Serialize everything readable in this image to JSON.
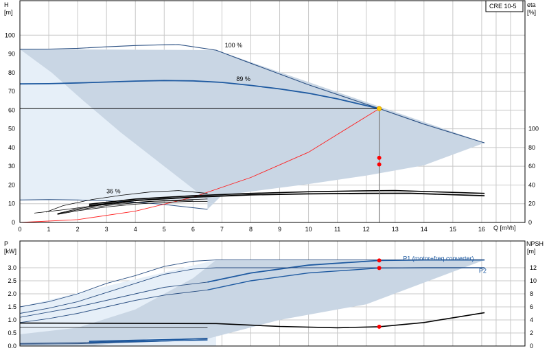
{
  "chart_data": [
    {
      "type": "line",
      "panel": "head-efficiency",
      "title": "",
      "model_label": "CRE 10-5",
      "xlabel": "Q [m³/h]",
      "ylabel_left": [
        "H",
        "[m]"
      ],
      "ylabel_right": [
        "eta",
        "[%]"
      ],
      "xlim": [
        0,
        17.5
      ],
      "ylim": [
        0,
        110
      ],
      "y2lim": [
        0,
        220
      ],
      "x_ticks": [
        0,
        1,
        2,
        3,
        4,
        5,
        6,
        7,
        8,
        9,
        10,
        11,
        12,
        13,
        14,
        15,
        16
      ],
      "y_ticks": [
        0,
        10,
        20,
        30,
        40,
        50,
        60,
        70,
        80,
        90,
        100
      ],
      "y2_ticks": [
        0,
        20,
        40,
        60,
        80,
        100
      ],
      "grid": true,
      "colors": {
        "pump": "#2a4f82",
        "duty": "#1d59a0",
        "system": "#ff2020",
        "eta": "#000000",
        "envelope": "#c9d6e4"
      },
      "operating_point": {
        "x": 12.45,
        "y": 60.8,
        "eta_points": [
          34.5,
          31.0
        ]
      },
      "annotations": [
        {
          "text": "100 %",
          "x": 7.1,
          "y": 93.5
        },
        {
          "text": "89 %",
          "x": 7.5,
          "y": 75.5
        },
        {
          "text": "36 %",
          "x": 3.0,
          "y": 15.5
        }
      ],
      "envelope": [
        [
          6.8,
          92.0
        ],
        [
          16.1,
          42.5
        ],
        [
          14.0,
          30.5
        ],
        [
          12.0,
          25.0
        ],
        [
          10.0,
          20.5
        ],
        [
          9.0,
          18.5
        ],
        [
          7.0,
          14.5
        ],
        [
          6.5,
          7.0
        ],
        [
          6.5,
          12.0
        ],
        [
          5.0,
          30.0
        ],
        [
          3.5,
          48.0
        ],
        [
          2.2,
          65.0
        ],
        [
          1.1,
          80.0
        ],
        [
          0.0,
          92.5
        ]
      ],
      "series": [
        {
          "name": "100 %",
          "x": [
            0,
            1,
            2,
            3,
            4,
            5,
            5.5,
            6.8,
            8,
            10,
            12.45,
            14,
            16.1
          ],
          "values": [
            92.5,
            92.6,
            93.0,
            93.8,
            94.5,
            94.9,
            95.0,
            92.0,
            85.0,
            73.5,
            60.8,
            52.5,
            42.5
          ]
        },
        {
          "name": "89 %",
          "x": [
            0,
            1,
            2,
            3,
            4,
            5,
            6,
            7,
            8,
            9,
            10,
            11,
            12.45
          ],
          "values": [
            74.0,
            74.1,
            74.5,
            75.0,
            75.5,
            75.8,
            75.6,
            74.8,
            73.2,
            71.3,
            69.0,
            66.0,
            60.8
          ]
        },
        {
          "name": "36 %",
          "x": [
            0,
            1,
            2,
            3,
            4,
            5,
            6.5
          ],
          "values": [
            12.0,
            12.2,
            12.0,
            11.6,
            10.8,
            9.6,
            7.0
          ]
        },
        {
          "name": "",
          "x": [
            0,
            2,
            4,
            6,
            8,
            10,
            12.45
          ],
          "values": [
            0,
            1.5,
            6.0,
            13.5,
            24.0,
            37.5,
            60.8
          ]
        },
        {
          "name": "",
          "x": [
            2.4,
            4,
            6,
            8,
            10,
            12,
            13,
            16.1
          ],
          "values": [
            19.5,
            25.0,
            28.5,
            31.0,
            32.8,
            33.8,
            34.0,
            31.0
          ]
        },
        {
          "name": "",
          "x": [
            2.4,
            4,
            6,
            8,
            10,
            12,
            13.5,
            16.1
          ],
          "values": [
            18.0,
            23.5,
            27.0,
            29.5,
            30.5,
            31.0,
            31.2,
            28.5
          ]
        },
        {
          "name": "",
          "x": [
            0.9,
            1.5,
            2.5,
            3.5,
            4.5,
            5.5,
            6.5
          ],
          "values": [
            11.0,
            18.0,
            24.5,
            29.0,
            32.5,
            34.0,
            31.0
          ]
        },
        {
          "name": "",
          "x": [
            1.3,
            2,
            3,
            4,
            5,
            6,
            6.5
          ],
          "values": [
            9.5,
            14.5,
            19.5,
            23.0,
            25.5,
            27.0,
            27.5
          ]
        },
        {
          "name": "",
          "x": [
            1.3,
            2,
            3,
            4,
            5,
            6,
            6.5
          ],
          "values": [
            9.0,
            13.5,
            18.0,
            21.0,
            23.5,
            24.5,
            25.0
          ]
        },
        {
          "name": "",
          "x": [
            1.3,
            2,
            3,
            4,
            5,
            6,
            6.5
          ],
          "values": [
            8.5,
            12.5,
            16.5,
            19.5,
            21.5,
            22.5,
            22.5
          ]
        },
        {
          "name": "",
          "x": [
            0.5,
            1.5,
            2.5,
            3.5,
            4.5,
            6.0
          ],
          "values": [
            10.0,
            13.5,
            17.5,
            20.5,
            22.5,
            23.5
          ]
        }
      ]
    },
    {
      "type": "line",
      "panel": "power-npsh",
      "title": "",
      "xlabel": "",
      "ylabel_left": [
        "P",
        "[kW]"
      ],
      "ylabel_right": [
        "NPSH",
        "[m]"
      ],
      "xlim": [
        0,
        17.5
      ],
      "ylim": [
        0,
        3.5
      ],
      "y2lim": [
        0,
        14
      ],
      "y_ticks": [
        "0.0",
        "0.5",
        "1.0",
        "1.5",
        "2.0",
        "2.5",
        "3.0"
      ],
      "y2_ticks": [
        0,
        2,
        4,
        6,
        8,
        10,
        12
      ],
      "grid": true,
      "legend_labels": [
        {
          "text": "P1 (motor+freq.converter)",
          "x": 14.7,
          "y": 3.27
        },
        {
          "text": "P2",
          "x": 16.0,
          "y": 2.8
        }
      ],
      "operating_points": [
        {
          "x": 12.45,
          "y": 3.28
        },
        {
          "x": 12.45,
          "y": 2.99
        },
        {
          "x": 12.45,
          "y": 0.74
        }
      ],
      "envelope": [
        [
          6.8,
          3.3
        ],
        [
          16.1,
          3.3
        ],
        [
          12.0,
          1.6
        ],
        [
          9.0,
          1.0
        ],
        [
          6.5,
          0.28
        ],
        [
          4.5,
          0.28
        ],
        [
          2.5,
          0.0
        ],
        [
          0.0,
          0.0
        ],
        [
          0.0,
          0.45
        ],
        [
          2.0,
          0.7
        ],
        [
          4.0,
          1.4
        ],
        [
          6.0,
          2.6
        ]
      ],
      "series": [
        {
          "name": "P1 (motor+freq.converter)",
          "x": [
            6.5,
            8,
            10,
            12.45,
            14,
            16.1
          ],
          "values": [
            2.45,
            2.8,
            3.1,
            3.28,
            3.3,
            3.3
          ]
        },
        {
          "name": "P2",
          "x": [
            6.5,
            8,
            10,
            12.45,
            14,
            16.1
          ],
          "values": [
            2.15,
            2.5,
            2.8,
            2.99,
            3.0,
            3.0
          ]
        },
        {
          "name": "",
          "x": [
            0,
            1,
            2,
            3,
            4,
            5,
            6,
            6.8,
            16.1
          ],
          "values": [
            1.5,
            1.7,
            2.0,
            2.4,
            2.7,
            3.05,
            3.25,
            3.3,
            3.3
          ]
        },
        {
          "name": "",
          "x": [
            0,
            1,
            2,
            3,
            4,
            5,
            6,
            6.8,
            16.1
          ],
          "values": [
            1.25,
            1.45,
            1.7,
            2.05,
            2.4,
            2.75,
            2.95,
            3.0,
            3.0
          ]
        },
        {
          "name": "",
          "x": [
            0,
            1,
            2,
            3,
            4,
            5,
            6.5
          ],
          "values": [
            1.1,
            1.3,
            1.5,
            1.75,
            2.0,
            2.25,
            2.45
          ]
        },
        {
          "name": "",
          "x": [
            0,
            1,
            2,
            3,
            4,
            5,
            6.5
          ],
          "values": [
            0.9,
            1.05,
            1.25,
            1.5,
            1.75,
            1.95,
            2.15
          ]
        },
        {
          "name": "",
          "x": [
            0,
            6.8,
            9,
            11,
            12.45,
            14,
            16.1
          ],
          "values": [
            0.88,
            0.86,
            0.75,
            0.7,
            0.74,
            0.9,
            1.28
          ]
        },
        {
          "name": "",
          "x": [
            0,
            6.5
          ],
          "values": [
            0.72,
            0.7
          ]
        },
        {
          "name": "",
          "x": [
            0,
            2,
            4,
            6.5
          ],
          "values": [
            0.1,
            0.13,
            0.2,
            0.3
          ]
        },
        {
          "name": "",
          "x": [
            0,
            2,
            4,
            6.5
          ],
          "values": [
            0.07,
            0.09,
            0.15,
            0.24
          ]
        },
        {
          "name": "",
          "x": [
            2.4,
            4,
            6.5
          ],
          "values": [
            0.18,
            0.22,
            0.28
          ]
        },
        {
          "name": "",
          "x": [
            2.4,
            4,
            6.5
          ],
          "values": [
            0.13,
            0.17,
            0.23
          ]
        }
      ]
    }
  ]
}
